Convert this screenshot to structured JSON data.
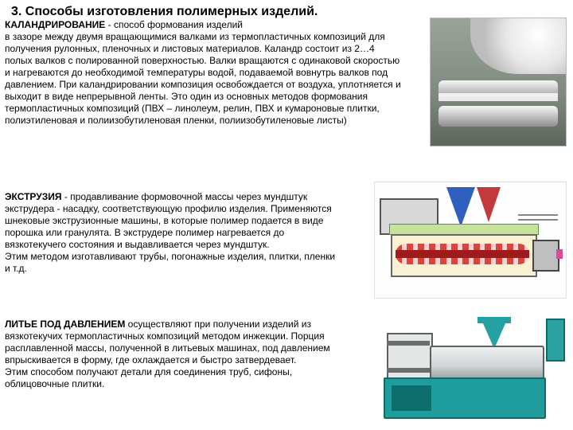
{
  "title": "3. Способы изготовления полимерных изделий.",
  "section1": {
    "heading": "КАЛАНДРИРОВАНИЕ",
    "line1": " - способ  формования  изделий",
    "body": "в  зазоре между двумя вращающимися валками из термопластичных композиций для получения рулонных, пленочных и листовых материалов. Каландр состоит из 2…4 полых валков с полированной поверхностью. Валки вращаются с одинаковой скоростью и нагреваются до необходимой температуры водой, подаваемой вовнутрь валков под давлением. При каландрировании композиция освобождается от воздуха, уплотняется и выходит в виде непрерывной ленты. Это один из основных методов формования термопластичных композиций (ПВХ – линолеум, релин, ПВХ и кумароновые плитки, полиэтиленовая и полиизобутиленовая пленки, полиизобутиленовые листы)"
  },
  "section2": {
    "heading": "ЭКСТРУЗИЯ",
    "body": " -  продавливание формовочной  массы через мундштук экструдера - насадку, соответствующую  профилю  изделия. Применяются  шнековые экструзионные машины, в которые полимер подается в виде порошка или гранулята.  В экструдере  полимер нагревается до  вязкотекучего  состояния и выдавливается через мундштук.\nЭтим  методом  изготавливают трубы,  погонажные  изделия, плитки, пленки и т.д."
  },
  "section3": {
    "heading": "ЛИТЬЕ ПОД ДАВЛЕНИЕМ",
    "body": " осуществляют при получении изделий из вязкотекучих термопластичных композиций методом инжекции. Порция расплавленной массы, полученной в литьевых  машинах, под давлением впрыскивается в форму, где охлаждается и быстро затвердевает.\nЭтим способом получают детали для соединения труб, сифоны, облицовочные плитки."
  },
  "figures": {
    "fig1_name": "calendering-rolls-photo",
    "fig2_name": "extruder-diagram",
    "fig3_name": "injection-molding-machine"
  },
  "colors": {
    "text": "#000000",
    "bg": "#ffffff"
  }
}
